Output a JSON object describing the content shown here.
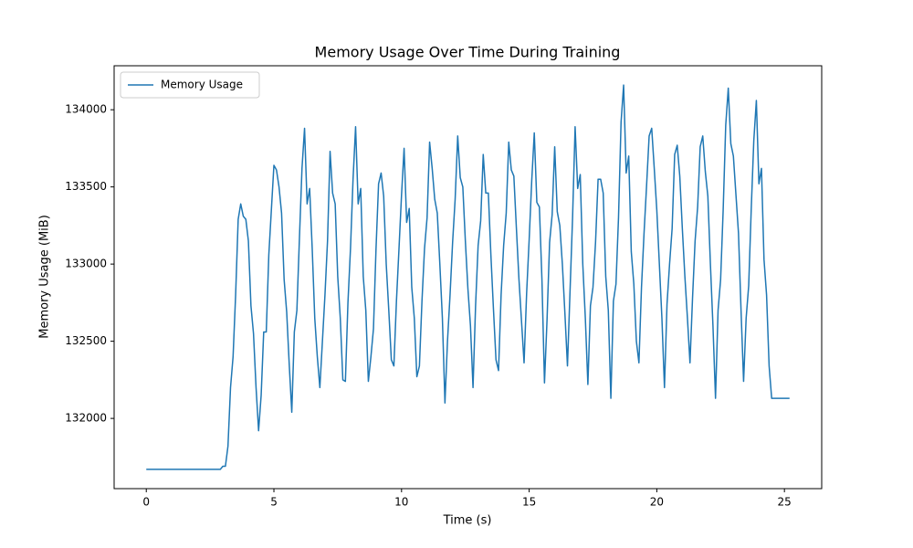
{
  "chart_data": {
    "type": "line",
    "title": "Memory Usage Over Time During Training",
    "xlabel": "Time (s)",
    "ylabel": "Memory Usage (MiB)",
    "x": [
      0,
      2.9,
      3.0,
      3.1,
      3.2,
      3.3,
      3.4,
      3.5,
      3.6,
      3.7,
      3.8,
      3.9,
      4.0,
      4.1,
      4.2,
      4.3,
      4.4,
      4.5,
      4.6,
      4.7,
      4.8,
      4.9,
      5.0,
      5.1,
      5.2,
      5.3,
      5.4,
      5.5,
      5.6,
      5.7,
      5.8,
      5.9,
      6.0,
      6.1,
      6.2,
      6.3,
      6.4,
      6.5,
      6.6,
      6.7,
      6.8,
      6.9,
      7.0,
      7.1,
      7.2,
      7.3,
      7.4,
      7.5,
      7.6,
      7.7,
      7.8,
      7.9,
      8.0,
      8.1,
      8.2,
      8.3,
      8.4,
      8.5,
      8.6,
      8.7,
      8.8,
      8.9,
      9.0,
      9.1,
      9.2,
      9.3,
      9.4,
      9.5,
      9.6,
      9.7,
      9.8,
      9.9,
      10.0,
      10.1,
      10.2,
      10.3,
      10.4,
      10.5,
      10.6,
      10.7,
      10.8,
      10.9,
      11.0,
      11.1,
      11.2,
      11.3,
      11.4,
      11.5,
      11.6,
      11.7,
      11.8,
      11.9,
      12.0,
      12.1,
      12.2,
      12.3,
      12.4,
      12.5,
      12.6,
      12.7,
      12.8,
      12.9,
      13.0,
      13.1,
      13.2,
      13.3,
      13.4,
      13.5,
      13.6,
      13.7,
      13.8,
      13.9,
      14.0,
      14.1,
      14.2,
      14.3,
      14.4,
      14.5,
      14.6,
      14.7,
      14.8,
      14.9,
      15.0,
      15.1,
      15.2,
      15.3,
      15.4,
      15.5,
      15.6,
      15.7,
      15.8,
      15.9,
      16.0,
      16.1,
      16.2,
      16.3,
      16.4,
      16.5,
      16.6,
      16.7,
      16.8,
      16.9,
      17.0,
      17.1,
      17.2,
      17.3,
      17.4,
      17.5,
      17.6,
      17.7,
      17.8,
      17.9,
      18.0,
      18.1,
      18.2,
      18.3,
      18.4,
      18.5,
      18.6,
      18.7,
      18.8,
      18.9,
      19.0,
      19.1,
      19.2,
      19.3,
      19.4,
      19.5,
      19.6,
      19.7,
      19.8,
      19.9,
      20.0,
      20.1,
      20.2,
      20.3,
      20.4,
      20.5,
      20.6,
      20.7,
      20.8,
      20.9,
      21.0,
      21.1,
      21.2,
      21.3,
      21.4,
      21.5,
      21.6,
      21.7,
      21.8,
      21.9,
      22.0,
      22.1,
      22.2,
      22.3,
      22.4,
      22.5,
      22.6,
      22.7,
      22.8,
      22.9,
      23.0,
      23.1,
      23.2,
      23.3,
      23.4,
      23.5,
      23.6,
      23.7,
      23.8,
      23.9,
      24.0,
      24.1,
      24.2,
      24.3,
      24.4,
      24.5,
      25.2
    ],
    "series": [
      {
        "name": "Memory Usage",
        "color": "#1f77b4",
        "values": [
          131670,
          131670,
          131690,
          131690,
          131820,
          132200,
          132400,
          132800,
          133290,
          133390,
          133310,
          133290,
          133150,
          132730,
          132550,
          132200,
          131920,
          132150,
          132560,
          132560,
          133060,
          133350,
          133640,
          133610,
          133500,
          133330,
          132900,
          132690,
          132350,
          132040,
          132560,
          132700,
          133170,
          133620,
          133880,
          133390,
          133490,
          133100,
          132650,
          132400,
          132200,
          132500,
          132800,
          133150,
          133730,
          133460,
          133390,
          132920,
          132650,
          132250,
          132240,
          132750,
          133100,
          133550,
          133890,
          133390,
          133490,
          132920,
          132700,
          132240,
          132400,
          132580,
          133100,
          133520,
          133590,
          133440,
          133000,
          132700,
          132380,
          132340,
          132760,
          133100,
          133450,
          133750,
          133270,
          133360,
          132850,
          132650,
          132270,
          132340,
          132760,
          133100,
          133300,
          133790,
          133620,
          133420,
          133330,
          133000,
          132650,
          132100,
          132500,
          132800,
          133140,
          133420,
          133830,
          133560,
          133500,
          133150,
          132840,
          132600,
          132200,
          132730,
          133120,
          133280,
          133710,
          133460,
          133460,
          133060,
          132710,
          132380,
          132310,
          132800,
          133120,
          133330,
          133790,
          133610,
          133570,
          133230,
          132900,
          132630,
          132360,
          132810,
          133160,
          133540,
          133850,
          133400,
          133370,
          132900,
          132230,
          132640,
          133140,
          133320,
          133760,
          133340,
          133250,
          133000,
          132680,
          132340,
          132820,
          133300,
          133890,
          133490,
          133580,
          133000,
          132650,
          132220,
          132730,
          132850,
          133140,
          133550,
          133550,
          133460,
          132920,
          132700,
          132130,
          132760,
          132870,
          133300,
          133920,
          134160,
          133590,
          133700,
          133080,
          132870,
          132500,
          132360,
          132850,
          133200,
          133510,
          133830,
          133880,
          133620,
          133350,
          133000,
          132650,
          132200,
          132740,
          133000,
          133230,
          133710,
          133770,
          133570,
          133230,
          132920,
          132650,
          132360,
          132780,
          133150,
          133370,
          133760,
          133830,
          133600,
          133440,
          133000,
          132600,
          132130,
          132700,
          132900,
          133350,
          133900,
          134140,
          133780,
          133700,
          133450,
          133200,
          132700,
          132240,
          132650,
          132860,
          133360,
          133800,
          134060,
          133520,
          133620,
          133030,
          132800,
          132340,
          132130,
          132130
        ]
      }
    ],
    "xlim": [
      -1.26,
      26.46
    ],
    "ylim": [
      131545,
      134285
    ],
    "xticks": [
      0,
      5,
      10,
      15,
      20,
      25
    ],
    "yticks": [
      132000,
      132500,
      133000,
      133500,
      134000
    ],
    "grid": false,
    "legend": "upper left"
  }
}
